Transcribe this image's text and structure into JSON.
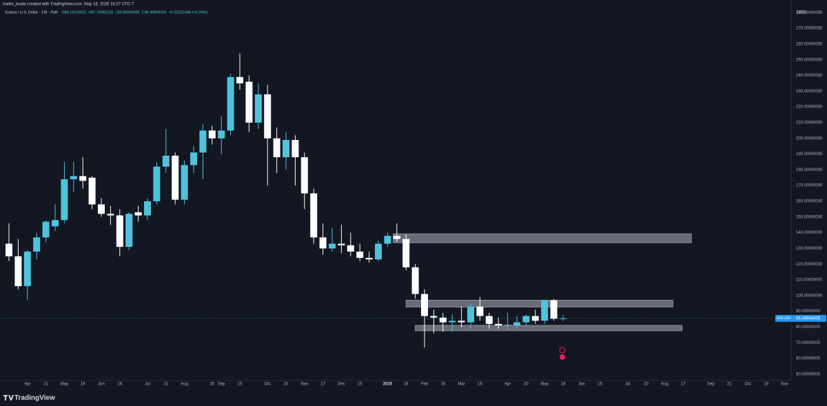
{
  "chart_data": {
    "type": "candlestick",
    "credit": "trader_koala created with TradingView.com, May 18, 2026 16:27 UTC-7",
    "symbol": "Solana / U.S. Dollar · 1W · Pyth",
    "ohlc_legend": [
      "O85.19110652",
      "H87.78450125",
      "L83.86500000",
      "C85.49994006",
      "+0.22321648 (+0.26%)"
    ],
    "currency": "USD",
    "brand": "TradingView",
    "up_color": "#4fc3dc",
    "down_color": "#ffffff",
    "grid": false,
    "categories": [
      null,
      null,
      "Apr",
      null,
      "21",
      null,
      "May",
      null,
      "19",
      null,
      "Jun",
      null,
      "16",
      null,
      null,
      "Jul",
      null,
      "21",
      null,
      "Aug",
      null,
      null,
      "25",
      "Sep",
      null,
      "15",
      null,
      null,
      "Oct",
      null,
      "20",
      null,
      "Nov",
      null,
      "17",
      null,
      "Dec",
      null,
      "15",
      null,
      null,
      "2026",
      null,
      "19",
      null,
      "Feb",
      null,
      "16",
      null,
      "Mar",
      null,
      "16",
      null,
      null,
      "Apr",
      null,
      "20",
      null,
      "May",
      null,
      "18",
      null,
      "Jun",
      null,
      "15",
      null,
      null,
      "Jul",
      null,
      "20",
      null,
      "Aug",
      null,
      "17",
      null,
      null,
      "Sep",
      null,
      "21",
      null,
      "Oct",
      null,
      "19",
      null,
      "Nov"
    ],
    "open": [
      133,
      125,
      106,
      128,
      137,
      144,
      148,
      174,
      176,
      175,
      158,
      152,
      151,
      131,
      153,
      151,
      160,
      182,
      189,
      161,
      183,
      191,
      205,
      200,
      205,
      239,
      236,
      210,
      228,
      200,
      188,
      199,
      188,
      165,
      137,
      130,
      133,
      132,
      128,
      124,
      123,
      133,
      138,
      136,
      118,
      101,
      87,
      86,
      83,
      84,
      83,
      93,
      87,
      82,
      81,
      81,
      83,
      87,
      84,
      97,
      85.19110652,
      null,
      null,
      null,
      null,
      null,
      null,
      null,
      null,
      null,
      null,
      null,
      null,
      null,
      null,
      null,
      null,
      null,
      null,
      null,
      null,
      null,
      null,
      null,
      null
    ],
    "high": [
      146,
      136,
      129,
      140,
      148,
      158,
      185,
      185,
      188,
      176,
      162,
      157,
      155,
      153,
      157,
      162,
      185,
      206,
      191,
      186,
      195,
      209,
      208,
      214,
      241,
      254,
      240,
      235,
      234,
      207,
      204,
      202,
      191,
      168,
      146,
      143,
      145,
      140,
      133,
      128,
      135,
      140,
      146,
      139,
      120,
      104,
      91,
      89,
      88,
      93,
      95,
      99,
      89,
      86,
      89,
      87,
      88,
      91,
      97,
      98,
      87.78450125,
      null,
      null,
      null,
      null,
      null,
      null,
      null,
      null,
      null,
      null,
      null,
      null,
      null,
      null,
      null,
      null,
      null,
      null,
      null,
      null,
      null,
      null,
      null,
      null
    ],
    "low": [
      122,
      104,
      97,
      123,
      134,
      141,
      146,
      166,
      168,
      155,
      150,
      145,
      125,
      129,
      147,
      148,
      158,
      178,
      158,
      158,
      178,
      174,
      196,
      190,
      202,
      231,
      204,
      206,
      170,
      178,
      180,
      170,
      155,
      133,
      126,
      128,
      127,
      125,
      122,
      121,
      122,
      131,
      134,
      116,
      98,
      67,
      76,
      77,
      77,
      80,
      79,
      84,
      79,
      79,
      78,
      79,
      81,
      82,
      82,
      84,
      83.865,
      null,
      null,
      null,
      null,
      null,
      null,
      null,
      null,
      null,
      null,
      null,
      null,
      null,
      null,
      null,
      null,
      null,
      null,
      null,
      null,
      null,
      null,
      null,
      null
    ],
    "close": [
      125,
      106,
      128,
      137,
      147,
      148,
      174,
      176,
      173,
      158,
      152,
      151,
      131,
      152,
      151,
      160,
      182,
      189,
      161,
      183,
      191,
      205,
      200,
      205,
      239,
      235,
      210,
      228,
      200,
      188,
      199,
      188,
      165,
      137,
      130,
      133,
      132,
      128,
      124,
      123,
      133,
      138,
      136,
      118,
      101,
      87,
      86,
      83,
      84,
      83,
      93,
      87,
      82,
      81,
      81.5,
      83,
      87,
      84,
      97,
      85.27672358,
      85.49994006,
      null,
      null,
      null,
      null,
      null,
      null,
      null,
      null,
      null,
      null,
      null,
      null,
      null,
      null,
      null,
      null,
      null,
      null,
      null,
      null,
      null,
      null,
      null,
      null
    ],
    "zones": [
      {
        "top": 139.3,
        "bottom": 133.6,
        "x0": 41.6,
        "x1": 73.9
      },
      {
        "top": 97.1,
        "bottom": 92.7,
        "x0": 43,
        "x1": 71.9
      },
      {
        "top": 81.1,
        "bottom": 77.6,
        "x0": 44,
        "x1": 72.9
      }
    ],
    "price_tag": {
      "symbol": "SOLUSD",
      "value": 85.49994006
    },
    "ylim": [
      46,
      288
    ],
    "yticks": [
      {
        "value": 50,
        "label": "50.00000000"
      },
      {
        "value": 60,
        "label": "60.00000000"
      },
      {
        "value": 70,
        "label": "70.00000000"
      },
      {
        "value": 80,
        "label": "80.00000000"
      },
      {
        "value": 90,
        "label": "90.00000000"
      },
      {
        "value": 100,
        "label": "100.00000000"
      },
      {
        "value": 110,
        "label": "110.00000000"
      },
      {
        "value": 120,
        "label": "120.00000000"
      },
      {
        "value": 130,
        "label": "130.00000000"
      },
      {
        "value": 140,
        "label": "140.00000000"
      },
      {
        "value": 150,
        "label": "150.00000000"
      },
      {
        "value": 160,
        "label": "160.00000000"
      },
      {
        "value": 170,
        "label": "170.00000000"
      },
      {
        "value": 180,
        "label": "180.00000000"
      },
      {
        "value": 190,
        "label": "190.00000000"
      },
      {
        "value": 200,
        "label": "200.00000000"
      },
      {
        "value": 210,
        "label": "210.00000000"
      },
      {
        "value": 220,
        "label": "220.00000000"
      },
      {
        "value": 230,
        "label": "230.00000000"
      },
      {
        "value": 240,
        "label": "240.00000000"
      },
      {
        "value": 250,
        "label": "250.00000000"
      },
      {
        "value": 260,
        "label": "260.00000000"
      },
      {
        "value": 270,
        "label": "270.00000000"
      },
      {
        "value": 280,
        "label": "280.00000000"
      }
    ]
  }
}
